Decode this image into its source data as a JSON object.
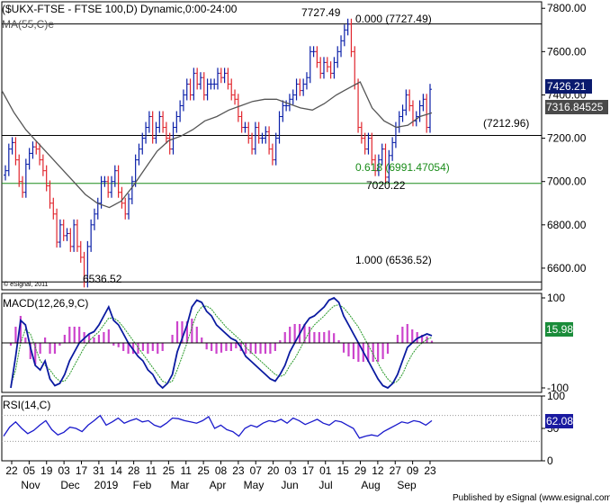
{
  "header": {
    "symbol_line": "($UKX-FTSE - FTSE 100,D) Dynamic,0:00-24:00",
    "ma_label": "MA(55,C)e",
    "copyright": "© eSignal, 2011",
    "publisher": "Published by eSignal (www.esignal.com)"
  },
  "colors": {
    "up_bar": "#0a1fa8",
    "down_bar": "#e0242c",
    "ma_line": "#555555",
    "fib_green": "#1a8c1a",
    "macd_line": "#0a1aa0",
    "signal_line": "#2a9a2a",
    "histogram": "#cc44cc",
    "rsi_line": "#1a1acc",
    "price_box": "#0a1a6e",
    "ma_box": "#4a4a4a",
    "macd_box": "#1a8c3a",
    "rsi_box": "#1a1aa0"
  },
  "chart_data": {
    "type": "line",
    "price_panel": {
      "ylim": [
        6500,
        7830
      ],
      "y_ticks": [
        "7800.00",
        "7600.00",
        "7400.00",
        "7200.00",
        "7000.00",
        "6800.00",
        "6600.00"
      ],
      "current_price": "7426.21",
      "ma_value": "7316.84525",
      "levels": [
        {
          "label": "0.000 (7727.49)",
          "value": 7727.49
        },
        {
          "label": "(7212.96)",
          "value": 7212.96
        },
        {
          "label": "0.618 (6991.47054)",
          "value": 6991.47
        },
        {
          "label": "1.000 (6536.52)",
          "value": 6536.52
        }
      ],
      "annotations": [
        "7727.49",
        "7020.22",
        "6536.52"
      ],
      "series": [
        {
          "name": "FTSE 100",
          "values": [
            7050,
            7150,
            7180,
            7100,
            7000,
            6950,
            7080,
            7130,
            7160,
            7150,
            7100,
            7050,
            6980,
            6900,
            6850,
            6720,
            6800,
            6750,
            6760,
            6700,
            6800,
            6700,
            6650,
            6536,
            6700,
            6800,
            6850,
            6900,
            7000,
            7000,
            6950,
            7000,
            7050,
            6950,
            6900,
            6850,
            6920,
            7000,
            7100,
            7150,
            7200,
            7250,
            7300,
            7200,
            7250,
            7300,
            7250,
            7200,
            7150,
            7250,
            7300,
            7350,
            7400,
            7450,
            7400,
            7500,
            7450,
            7480,
            7400,
            7450,
            7450,
            7450,
            7500,
            7480,
            7500,
            7450,
            7400,
            7380,
            7300,
            7250,
            7250,
            7200,
            7150,
            7250,
            7200,
            7200,
            7230,
            7150,
            7100,
            7200,
            7300,
            7350,
            7350,
            7380,
            7400,
            7450,
            7420,
            7450,
            7480,
            7600,
            7600,
            7550,
            7500,
            7550,
            7530,
            7500,
            7550,
            7600,
            7650,
            7700,
            7727,
            7600,
            7450,
            7250,
            7200,
            7150,
            7200,
            7100,
            7050,
            7100,
            7150,
            7020,
            7120,
            7180,
            7250,
            7300,
            7330,
            7400,
            7350,
            7280,
            7300,
            7350,
            7380,
            7250,
            7426
          ]
        },
        {
          "name": "MA(55,C)e",
          "values": [
            7420,
            7320,
            7240,
            7180,
            7120,
            7060,
            7000,
            6940,
            6900,
            6880,
            6910,
            6980,
            7060,
            7140,
            7190,
            7210,
            7240,
            7280,
            7300,
            7330,
            7350,
            7370,
            7380,
            7380,
            7360,
            7340,
            7330,
            7360,
            7400,
            7430,
            7460,
            7340,
            7280,
            7250,
            7260,
            7300,
            7317
          ]
        }
      ]
    },
    "macd_panel": {
      "label": "MACD(12,26,9,C)",
      "ylim": [
        -110,
        110
      ],
      "y_ticks": [
        "100",
        "-100"
      ],
      "value": "15.98",
      "series": [
        {
          "name": "MACD",
          "values": [
            -100,
            -30,
            50,
            40,
            -10,
            -50,
            -60,
            -40,
            -80,
            -95,
            -90,
            -70,
            -40,
            -20,
            0,
            10,
            20,
            25,
            40,
            60,
            80,
            50,
            40,
            20,
            0,
            -15,
            -30,
            -40,
            -60,
            -70,
            -90,
            -100,
            -90,
            -70,
            -20,
            10,
            40,
            80,
            95,
            90,
            70,
            60,
            40,
            30,
            20,
            10,
            5,
            -10,
            -30,
            -40,
            -50,
            -60,
            -70,
            -80,
            -85,
            -70,
            -50,
            -20,
            0,
            20,
            40,
            55,
            60,
            70,
            80,
            95,
            100,
            90,
            60,
            40,
            20,
            0,
            -20,
            -40,
            -60,
            -80,
            -95,
            -100,
            -90,
            -70,
            -40,
            -10,
            0,
            10,
            15,
            20,
            16
          ]
        },
        {
          "name": "Signal",
          "values": [
            -95,
            -60,
            0,
            30,
            20,
            -10,
            -40,
            -50,
            -60,
            -75,
            -85,
            -85,
            -70,
            -50,
            -30,
            -10,
            5,
            15,
            25,
            40,
            55,
            55,
            48,
            35,
            20,
            5,
            -10,
            -25,
            -40,
            -55,
            -70,
            -85,
            -90,
            -85,
            -60,
            -30,
            0,
            35,
            65,
            80,
            82,
            75,
            60,
            48,
            35,
            25,
            15,
            5,
            -10,
            -20,
            -30,
            -40,
            -50,
            -60,
            -70,
            -75,
            -70,
            -50,
            -35,
            -15,
            5,
            25,
            40,
            50,
            60,
            72,
            82,
            85,
            78,
            65,
            50,
            35,
            15,
            -5,
            -25,
            -45,
            -65,
            -80,
            -90,
            -85,
            -70,
            -45,
            -25,
            -10,
            0,
            8,
            12
          ]
        }
      ]
    },
    "rsi_panel": {
      "label": "RSI(14,C)",
      "ylim": [
        0,
        100
      ],
      "y_ticks": [
        "100",
        "50",
        "0"
      ],
      "value": "62.08",
      "series": [
        {
          "name": "RSI",
          "values": [
            38,
            52,
            60,
            50,
            42,
            47,
            55,
            62,
            48,
            40,
            44,
            52,
            50,
            45,
            55,
            62,
            70,
            55,
            60,
            66,
            58,
            62,
            65,
            60,
            62,
            55,
            52,
            58,
            66,
            65,
            62,
            60,
            58,
            62,
            68,
            50,
            55,
            48,
            45,
            38,
            50,
            55,
            52,
            58,
            62,
            60,
            64,
            58,
            66,
            62,
            56,
            60,
            64,
            58,
            55,
            62,
            60,
            55,
            50,
            35,
            38,
            40,
            38,
            45,
            50,
            55,
            60,
            58,
            62,
            60,
            55,
            62
          ]
        }
      ]
    },
    "x_tick_labels": [
      "22",
      "05",
      "19",
      "03",
      "17",
      "31",
      "14",
      "28",
      "11",
      "25",
      "11",
      "25",
      "08",
      "23",
      "07",
      "20",
      "03",
      "17",
      "01",
      "15",
      "29",
      "12",
      "27",
      "09",
      "23"
    ],
    "month_labels": [
      "Nov",
      "Dec",
      "2019",
      "Feb",
      "Mar",
      "Apr",
      "May",
      "Jun",
      "Jul",
      "Aug",
      "Sep"
    ]
  }
}
